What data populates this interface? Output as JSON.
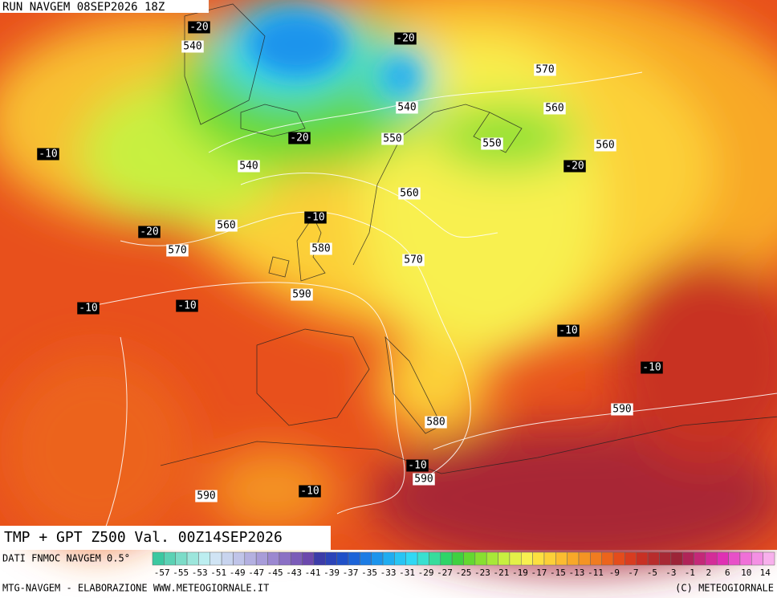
{
  "header": {
    "title": "RUN NAVGEM 08SEP2026 18Z"
  },
  "map": {
    "gph_labels": [
      540,
      570,
      560,
      540,
      550,
      550,
      560,
      540,
      560,
      560,
      570,
      580,
      570,
      590,
      590,
      580,
      590,
      590
    ],
    "tmp_labels": [
      -20,
      -20,
      -20,
      -10,
      -20,
      -20,
      -10,
      -10,
      -10,
      -10,
      -10,
      -10,
      -10
    ]
  },
  "footer": {
    "product": "TMP + GPT Z500 Val. 00Z14SEP2026",
    "source": "DATI FNMOC NAVGEM 0.5°",
    "credit": "MTG-NAVGEM - ELABORAZIONE WWW.METEOGIORNALE.IT",
    "copyright": "(C) METEOGIORNALE"
  },
  "scale": {
    "colors": [
      "#3cc8a0",
      "#5cd2b4",
      "#7cdcc8",
      "#9ce6dc",
      "#bceef0",
      "#d0e4f4",
      "#c8d4ee",
      "#c0c4e8",
      "#b4b0e0",
      "#a89cd8",
      "#9c88d0",
      "#8c70c4",
      "#7c5cb8",
      "#6c48ac",
      "#3c3ca8",
      "#2c44b8",
      "#2050c8",
      "#1c64d8",
      "#1c7ce4",
      "#1c94ec",
      "#20acf0",
      "#28c4f4",
      "#30d8f4",
      "#38e0d0",
      "#38dc9c",
      "#30d468",
      "#40d040",
      "#64d830",
      "#88e030",
      "#a8e838",
      "#c8f040",
      "#e4f048",
      "#f8f050",
      "#fce040",
      "#fcd038",
      "#fcbc30",
      "#f8a828",
      "#f49424",
      "#f07c20",
      "#ec641c",
      "#e44c1c",
      "#d83c20",
      "#c83024",
      "#b82c2c",
      "#a82834",
      "#9c2438",
      "#b02458",
      "#c42878",
      "#d42c98",
      "#e030b4",
      "#e850c8",
      "#f070d8",
      "#f490e4",
      "#f8b0ec"
    ],
    "labels": [
      -57,
      -55,
      -53,
      -51,
      -49,
      -47,
      -45,
      -43,
      -41,
      -39,
      -37,
      -35,
      -33,
      -31,
      -29,
      -27,
      -25,
      -23,
      -21,
      -19,
      -17,
      -15,
      -13,
      -11,
      -9,
      -7,
      -5,
      -3,
      -1,
      2,
      6,
      10,
      14
    ]
  }
}
